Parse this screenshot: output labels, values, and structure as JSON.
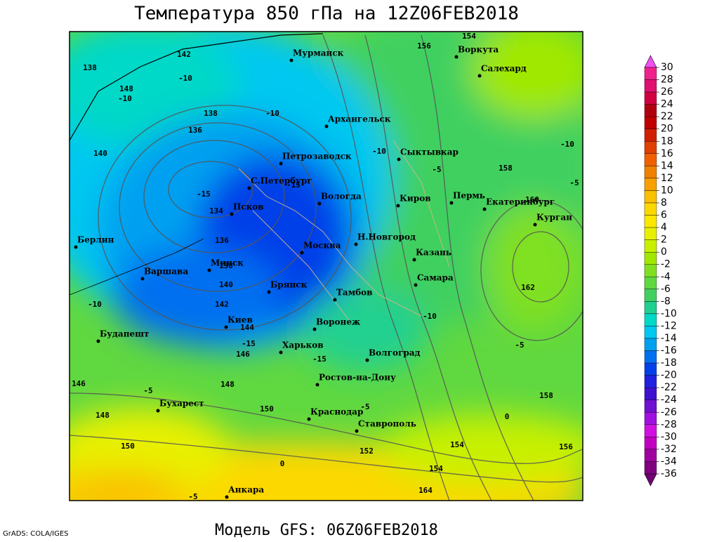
{
  "title": "Температура 850 гПа на 12Z06FEB2018",
  "footer": "Модель GFS: 06Z06FEB2018",
  "credit": "GrADS: COLA/IGES",
  "cities": [
    "Мурманск",
    "Воркута",
    "Салехард",
    "Архангельск",
    "Петрозаводск",
    "Сыктывкар",
    "С.Петербург",
    "Вологда",
    "Киров",
    "Пермь",
    "Екатеринбург",
    "Курган",
    "Псков",
    "Берлин",
    "Н.Новгород",
    "Москва",
    "Казань",
    "Минск",
    "Варшава",
    "Самара",
    "Брянск",
    "Тамбов",
    "Киев",
    "Воронеж",
    "Будапешт",
    "Харьков",
    "Волгоград",
    "Ростов-на-Дону",
    "Бухарест",
    "Краснодар",
    "Ставрополь",
    "Анкара"
  ],
  "contour_labels": [
    138,
    142,
    154,
    156,
    148,
    -10,
    -10,
    138,
    136,
    -10,
    140,
    -10,
    -5,
    158,
    -10,
    -5,
    -15,
    -15,
    134,
    160,
    136,
    138,
    140,
    162,
    -10,
    142,
    144,
    -10,
    -15,
    -5,
    146,
    -15,
    146,
    148,
    -5,
    158,
    150,
    148,
    -5,
    0,
    150,
    152,
    154,
    156,
    0,
    154,
    164,
    -5
  ],
  "colorbar": {
    "ticks": [
      30,
      28,
      26,
      24,
      22,
      20,
      18,
      16,
      14,
      12,
      10,
      8,
      6,
      4,
      2,
      0,
      -2,
      -4,
      -6,
      -8,
      -10,
      -12,
      -14,
      -16,
      -18,
      -20,
      -22,
      -24,
      -26,
      -28,
      -30,
      -32,
      -34,
      -36
    ],
    "colors": [
      "#f050f0",
      "#f0208c",
      "#e01070",
      "#d00040",
      "#b00010",
      "#c00000",
      "#d02000",
      "#e04000",
      "#f06000",
      "#f08000",
      "#f8a000",
      "#fbc000",
      "#fcd800",
      "#fae800",
      "#e8f000",
      "#c8f000",
      "#a0e800",
      "#80e020",
      "#60d840",
      "#40d060",
      "#20d090",
      "#00d8c8",
      "#00c8f0",
      "#00a0f0",
      "#0070f0",
      "#0040e8",
      "#2020e0",
      "#4010d0",
      "#7010d0",
      "#a010e0",
      "#d010e0",
      "#c000c0",
      "#a000a0",
      "#800080",
      "#700070"
    ]
  }
}
